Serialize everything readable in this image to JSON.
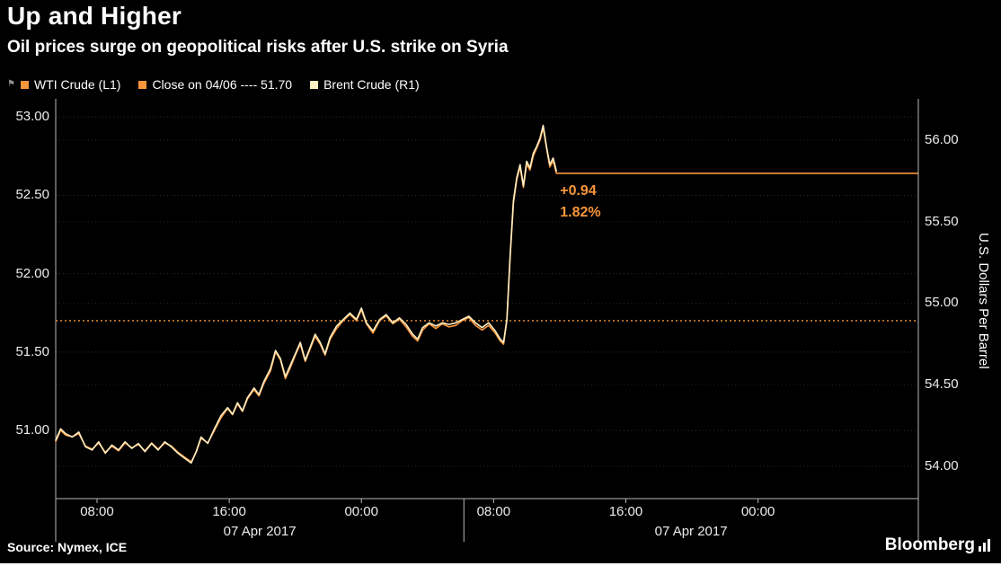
{
  "header": {
    "title": "Up and Higher",
    "subtitle": "Oil prices surge on geopolitical risks after U.S. strike on Syria"
  },
  "legend": {
    "items": [
      {
        "label": "WTI Crude (L1)",
        "color": "#f8963c"
      },
      {
        "label": "Close on 04/06 ---- 51.70",
        "color": "#f8963c"
      },
      {
        "label": "Brent Crude (R1)",
        "color": "#ffeec2"
      }
    ]
  },
  "footer": {
    "source": "Source: Nymex, ICE",
    "brand": "Bloomberg"
  },
  "chart_data": {
    "type": "line",
    "title": "Up and Higher",
    "subtitle": "Oil prices surge on geopolitical risks after U.S. strike on Syria",
    "background": "#000000",
    "grid": "dotted",
    "legend_position": "top-left",
    "x": {
      "domain_hours": [
        0,
        52.2
      ],
      "ticks": [
        {
          "t": 2.5,
          "label": "08:00"
        },
        {
          "t": 10.5,
          "label": "16:00"
        },
        {
          "t": 18.5,
          "label": "00:00"
        },
        {
          "t": 26.5,
          "label": "08:00"
        },
        {
          "t": 34.5,
          "label": "16:00"
        },
        {
          "t": 42.5,
          "label": "00:00"
        }
      ],
      "sections": [
        {
          "from": 0,
          "to": 24.7,
          "label": "07 Apr 2017"
        },
        {
          "from": 24.7,
          "to": 52.2,
          "label": "07 Apr 2017"
        }
      ]
    },
    "left_axis": {
      "range": [
        50.565,
        53.115
      ],
      "ticks": [
        51.0,
        51.5,
        52.0,
        52.5,
        53.0
      ]
    },
    "right_axis": {
      "range": [
        53.802,
        56.253
      ],
      "ticks": [
        54.0,
        54.5,
        55.0,
        55.5,
        56.0
      ],
      "label": "U.S. Dollars Per Barrel"
    },
    "close_line": {
      "label": "Close on 04/06",
      "value": 51.7,
      "axis": "left",
      "style": "dotted",
      "color": "#f8963c"
    },
    "last_price_line": {
      "value": 52.64,
      "from_t": 30.3,
      "axis": "left",
      "color": "#f8963c"
    },
    "annotation": {
      "change": "+0.94",
      "percent": "1.82%",
      "color": "#f8963c"
    },
    "series": [
      {
        "name": "WTI Crude (L1)",
        "axis": "left",
        "color": "#f8963c",
        "points": [
          [
            0,
            50.93
          ],
          [
            0.3,
            51.0
          ],
          [
            0.6,
            50.97
          ],
          [
            1.0,
            50.96
          ],
          [
            1.4,
            50.98
          ],
          [
            1.8,
            50.9
          ],
          [
            2.2,
            50.88
          ],
          [
            2.6,
            50.92
          ],
          [
            3.0,
            50.86
          ],
          [
            3.4,
            50.9
          ],
          [
            3.8,
            50.87
          ],
          [
            4.2,
            50.92
          ],
          [
            4.6,
            50.89
          ],
          [
            5.0,
            50.91
          ],
          [
            5.4,
            50.87
          ],
          [
            5.8,
            50.92
          ],
          [
            6.2,
            50.88
          ],
          [
            6.6,
            50.92
          ],
          [
            7.0,
            50.9
          ],
          [
            7.4,
            50.86
          ],
          [
            7.8,
            50.83
          ],
          [
            8.2,
            50.8
          ],
          [
            8.5,
            50.86
          ],
          [
            8.8,
            50.95
          ],
          [
            9.2,
            50.92
          ],
          [
            9.6,
            51.0
          ],
          [
            10.0,
            51.08
          ],
          [
            10.4,
            51.14
          ],
          [
            10.7,
            51.1
          ],
          [
            11.0,
            51.17
          ],
          [
            11.3,
            51.12
          ],
          [
            11.6,
            51.2
          ],
          [
            12.0,
            51.26
          ],
          [
            12.3,
            51.22
          ],
          [
            12.6,
            51.3
          ],
          [
            13.0,
            51.38
          ],
          [
            13.3,
            51.5
          ],
          [
            13.6,
            51.45
          ],
          [
            13.9,
            51.33
          ],
          [
            14.2,
            51.4
          ],
          [
            14.5,
            51.48
          ],
          [
            14.8,
            51.55
          ],
          [
            15.1,
            51.44
          ],
          [
            15.4,
            51.52
          ],
          [
            15.7,
            51.6
          ],
          [
            16.0,
            51.55
          ],
          [
            16.3,
            51.48
          ],
          [
            16.6,
            51.58
          ],
          [
            17.0,
            51.65
          ],
          [
            17.4,
            51.7
          ],
          [
            17.8,
            51.74
          ],
          [
            18.2,
            51.7
          ],
          [
            18.5,
            51.77
          ],
          [
            18.8,
            51.68
          ],
          [
            19.2,
            51.62
          ],
          [
            19.6,
            51.7
          ],
          [
            20.0,
            51.73
          ],
          [
            20.4,
            51.68
          ],
          [
            20.8,
            51.71
          ],
          [
            21.2,
            51.66
          ],
          [
            21.6,
            51.6
          ],
          [
            21.9,
            51.57
          ],
          [
            22.2,
            51.64
          ],
          [
            22.6,
            51.68
          ],
          [
            23.0,
            51.65
          ],
          [
            23.4,
            51.68
          ],
          [
            23.8,
            51.66
          ],
          [
            24.2,
            51.67
          ],
          [
            24.6,
            51.7
          ],
          [
            25.0,
            51.72
          ],
          [
            25.4,
            51.67
          ],
          [
            25.8,
            51.64
          ],
          [
            26.2,
            51.67
          ],
          [
            26.6,
            51.62
          ],
          [
            26.9,
            51.57
          ],
          [
            27.1,
            51.55
          ],
          [
            27.3,
            51.7
          ],
          [
            27.5,
            52.1
          ],
          [
            27.7,
            52.45
          ],
          [
            27.9,
            52.6
          ],
          [
            28.1,
            52.68
          ],
          [
            28.3,
            52.55
          ],
          [
            28.5,
            52.7
          ],
          [
            28.7,
            52.66
          ],
          [
            28.9,
            52.75
          ],
          [
            29.1,
            52.8
          ],
          [
            29.3,
            52.85
          ],
          [
            29.5,
            52.93
          ],
          [
            29.7,
            52.8
          ],
          [
            29.9,
            52.68
          ],
          [
            30.1,
            52.72
          ],
          [
            30.3,
            52.64
          ]
        ]
      },
      {
        "name": "Brent Crude (R1)",
        "axis": "right",
        "color": "#ffeec2",
        "points": [
          [
            0,
            54.16
          ],
          [
            0.3,
            54.23
          ],
          [
            0.6,
            54.2
          ],
          [
            1.0,
            54.18
          ],
          [
            1.4,
            54.21
          ],
          [
            1.8,
            54.12
          ],
          [
            2.2,
            54.1
          ],
          [
            2.6,
            54.15
          ],
          [
            3.0,
            54.08
          ],
          [
            3.4,
            54.13
          ],
          [
            3.8,
            54.1
          ],
          [
            4.2,
            54.15
          ],
          [
            4.6,
            54.11
          ],
          [
            5.0,
            54.14
          ],
          [
            5.4,
            54.09
          ],
          [
            5.8,
            54.14
          ],
          [
            6.2,
            54.1
          ],
          [
            6.6,
            54.15
          ],
          [
            7.0,
            54.12
          ],
          [
            7.4,
            54.08
          ],
          [
            7.8,
            54.05
          ],
          [
            8.2,
            54.02
          ],
          [
            8.5,
            54.09
          ],
          [
            8.8,
            54.18
          ],
          [
            9.2,
            54.14
          ],
          [
            9.6,
            54.23
          ],
          [
            10.0,
            54.31
          ],
          [
            10.4,
            54.36
          ],
          [
            10.7,
            54.32
          ],
          [
            11.0,
            54.39
          ],
          [
            11.3,
            54.34
          ],
          [
            11.6,
            54.42
          ],
          [
            12.0,
            54.48
          ],
          [
            12.3,
            54.44
          ],
          [
            12.6,
            54.52
          ],
          [
            13.0,
            54.6
          ],
          [
            13.3,
            54.71
          ],
          [
            13.6,
            54.66
          ],
          [
            13.9,
            54.55
          ],
          [
            14.2,
            54.62
          ],
          [
            14.5,
            54.69
          ],
          [
            14.8,
            54.76
          ],
          [
            15.1,
            54.65
          ],
          [
            15.4,
            54.73
          ],
          [
            15.7,
            54.81
          ],
          [
            16.0,
            54.76
          ],
          [
            16.3,
            54.69
          ],
          [
            16.6,
            54.79
          ],
          [
            17.0,
            54.86
          ],
          [
            17.4,
            54.9
          ],
          [
            17.8,
            54.94
          ],
          [
            18.2,
            54.9
          ],
          [
            18.5,
            54.97
          ],
          [
            18.8,
            54.88
          ],
          [
            19.2,
            54.83
          ],
          [
            19.6,
            54.9
          ],
          [
            20.0,
            54.93
          ],
          [
            20.4,
            54.88
          ],
          [
            20.8,
            54.91
          ],
          [
            21.2,
            54.87
          ],
          [
            21.6,
            54.81
          ],
          [
            21.9,
            54.78
          ],
          [
            22.2,
            54.85
          ],
          [
            22.6,
            54.88
          ],
          [
            23.0,
            54.86
          ],
          [
            23.4,
            54.88
          ],
          [
            23.8,
            54.87
          ],
          [
            24.2,
            54.88
          ],
          [
            24.6,
            54.9
          ],
          [
            25.0,
            54.92
          ],
          [
            25.4,
            54.88
          ],
          [
            25.8,
            54.85
          ],
          [
            26.2,
            54.88
          ],
          [
            26.6,
            54.83
          ],
          [
            26.9,
            54.78
          ],
          [
            27.1,
            54.76
          ],
          [
            27.3,
            54.9
          ],
          [
            27.5,
            55.29
          ],
          [
            27.7,
            55.63
          ],
          [
            27.9,
            55.77
          ],
          [
            28.1,
            55.85
          ],
          [
            28.3,
            55.72
          ],
          [
            28.5,
            55.87
          ],
          [
            28.7,
            55.83
          ],
          [
            28.9,
            55.92
          ],
          [
            29.1,
            55.96
          ],
          [
            29.3,
            56.01
          ],
          [
            29.5,
            56.09
          ],
          [
            29.7,
            55.96
          ],
          [
            29.9,
            55.85
          ],
          [
            30.1,
            55.89
          ],
          [
            30.3,
            55.81
          ]
        ]
      }
    ]
  }
}
